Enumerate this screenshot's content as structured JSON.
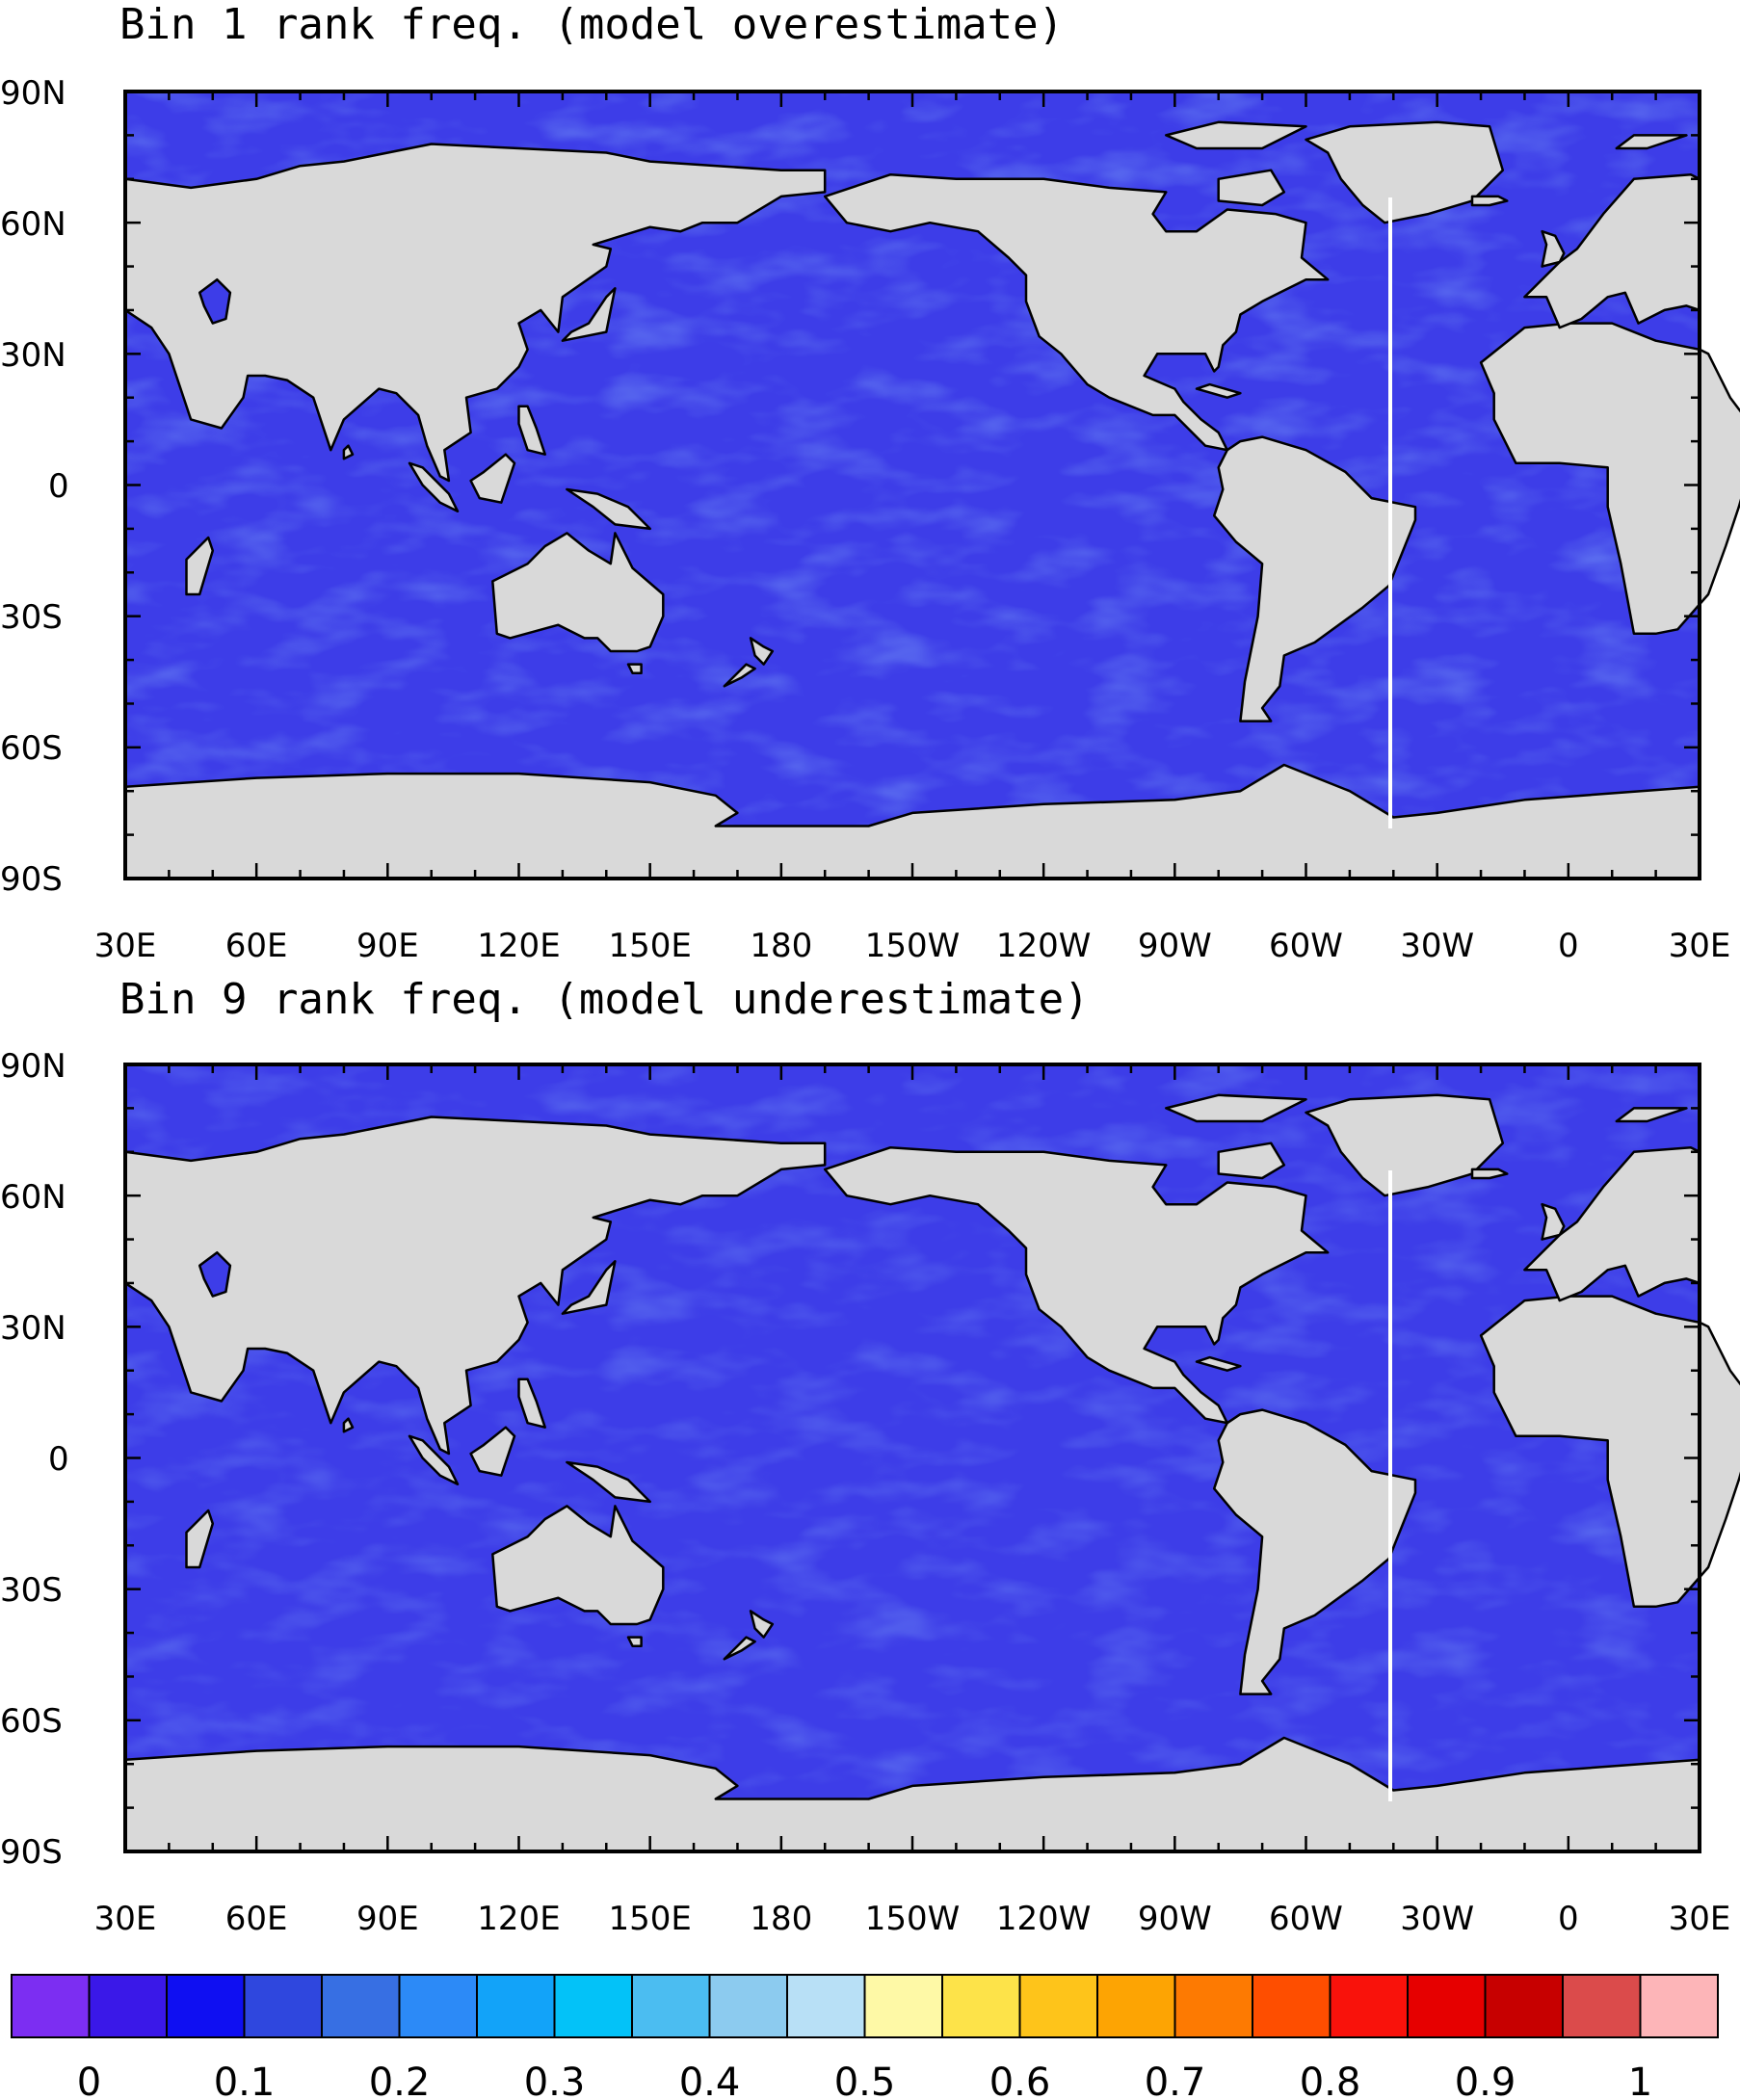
{
  "colors": {
    "land": "#d9d9d9",
    "coast": "#000000",
    "ocean_base": "#3d3de8",
    "ocean_light": "#4a78ee",
    "ocean_dark": "#3a1fe6",
    "ocean_cyan": "#3fb6f0"
  },
  "panels": [
    {
      "id": "bin1",
      "title": "Bin 1 rank freq. (model overestimate)",
      "lat_labels": [
        "90N",
        "60N",
        "30N",
        "0",
        "30S",
        "60S",
        "90S"
      ],
      "lon_labels": [
        "30E",
        "60E",
        "90E",
        "120E",
        "150E",
        "180",
        "150W",
        "120W",
        "90W",
        "60W",
        "30W",
        "0",
        "30E"
      ]
    },
    {
      "id": "bin9",
      "title": "Bin 9 rank freq. (model underestimate)",
      "lat_labels": [
        "90N",
        "60N",
        "30N",
        "0",
        "30S",
        "60S",
        "90S"
      ],
      "lon_labels": [
        "30E",
        "60E",
        "90E",
        "120E",
        "150E",
        "180",
        "150W",
        "120W",
        "90W",
        "60W",
        "30W",
        "0",
        "30E"
      ]
    }
  ],
  "colorbar": {
    "colors": [
      "#7c2ef2",
      "#3a18e8",
      "#0f0ff2",
      "#2f47de",
      "#376fe3",
      "#2c8af7",
      "#12a3f9",
      "#03c2f8",
      "#4bbdf1",
      "#8ccbef",
      "#b8e0f6",
      "#fef9a6",
      "#fde349",
      "#fec41a",
      "#fda403",
      "#fd7a02",
      "#fe4e00",
      "#f9120b",
      "#e60000",
      "#c70000",
      "#db4b4b",
      "#fdb5b8"
    ],
    "labels": [
      "0",
      "0.1",
      "0.2",
      "0.3",
      "0.4",
      "0.5",
      "0.6",
      "0.7",
      "0.8",
      "0.9",
      "1"
    ]
  }
}
